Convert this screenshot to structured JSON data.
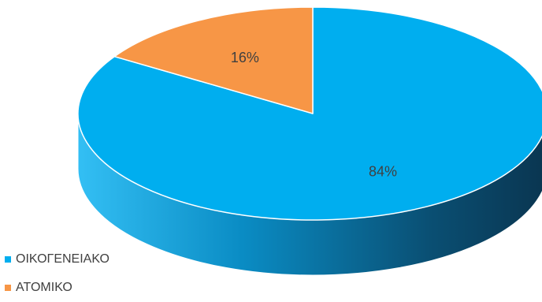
{
  "chart_data": {
    "type": "pie",
    "style": "3d",
    "categories": [
      "ΟΙΚΟΓΕΝΕΙΑΚΟ",
      "ΑΤΟΜΙΚΟ"
    ],
    "values": [
      84,
      16
    ],
    "data_labels": [
      "84%",
      "16%"
    ],
    "colors": [
      "#00aeef",
      "#f79646"
    ],
    "legend_position": "bottom-left"
  }
}
